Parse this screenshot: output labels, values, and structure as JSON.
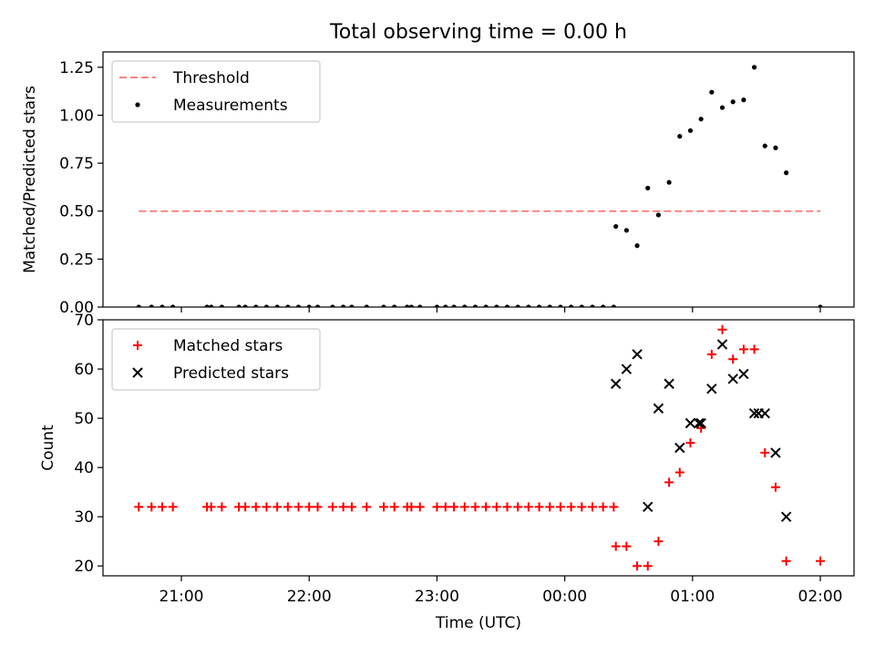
{
  "title": "Total observing time = 0.00 h",
  "chart_data": [
    {
      "type": "scatter",
      "ylabel": "Matched/Predicted stars",
      "ylim": [
        0,
        1.33
      ],
      "yticks": [
        "0.00",
        "0.25",
        "0.50",
        "0.75",
        "1.00",
        "1.25"
      ],
      "grid": false,
      "legend": {
        "placement": "top-left",
        "entries": [
          "Threshold",
          "Measurements"
        ]
      },
      "series": [
        {
          "name": "Threshold",
          "kind": "dashed-line",
          "color": "#ff8080",
          "points": [
            [
              "20:40",
              0.5
            ],
            [
              "02:00",
              0.5
            ]
          ]
        },
        {
          "name": "Measurements",
          "kind": "dots",
          "color": "#000000",
          "points": [
            [
              "20:40",
              0
            ],
            [
              "20:46",
              0
            ],
            [
              "20:51",
              0
            ],
            [
              "20:56",
              0
            ],
            [
              "21:12",
              0
            ],
            [
              "21:14",
              0
            ],
            [
              "21:19",
              0
            ],
            [
              "21:27",
              0
            ],
            [
              "21:30",
              0
            ],
            [
              "21:35",
              0
            ],
            [
              "21:40",
              0
            ],
            [
              "21:45",
              0
            ],
            [
              "21:50",
              0
            ],
            [
              "21:55",
              0
            ],
            [
              "22:00",
              0
            ],
            [
              "22:04",
              0
            ],
            [
              "22:11",
              0
            ],
            [
              "22:16",
              0
            ],
            [
              "22:20",
              0
            ],
            [
              "22:27",
              0
            ],
            [
              "22:35",
              0
            ],
            [
              "22:40",
              0
            ],
            [
              "22:46",
              0
            ],
            [
              "22:48",
              0
            ],
            [
              "22:52",
              0
            ],
            [
              "23:00",
              0
            ],
            [
              "23:04",
              0
            ],
            [
              "23:08",
              0
            ],
            [
              "23:13",
              0
            ],
            [
              "23:18",
              0
            ],
            [
              "23:23",
              0
            ],
            [
              "23:28",
              0
            ],
            [
              "23:33",
              0
            ],
            [
              "23:38",
              0
            ],
            [
              "23:43",
              0
            ],
            [
              "23:48",
              0
            ],
            [
              "23:53",
              0
            ],
            [
              "23:58",
              0
            ],
            [
              "00:03",
              0
            ],
            [
              "00:08",
              0
            ],
            [
              "00:13",
              0
            ],
            [
              "00:18",
              0
            ],
            [
              "00:23",
              0
            ],
            [
              "00:24",
              0.42
            ],
            [
              "00:29",
              0.4
            ],
            [
              "00:34",
              0.32
            ],
            [
              "00:39",
              0.62
            ],
            [
              "00:44",
              0.48
            ],
            [
              "00:49",
              0.65
            ],
            [
              "00:54",
              0.89
            ],
            [
              "00:59",
              0.92
            ],
            [
              "01:04",
              0.98
            ],
            [
              "01:09",
              1.12
            ],
            [
              "01:14",
              1.04
            ],
            [
              "01:19",
              1.07
            ],
            [
              "01:24",
              1.08
            ],
            [
              "01:29",
              1.25
            ],
            [
              "01:34",
              0.84
            ],
            [
              "01:39",
              0.83
            ],
            [
              "01:44",
              0.7
            ],
            [
              "02:00",
              0
            ]
          ]
        }
      ]
    },
    {
      "type": "scatter",
      "xlabel": "Time (UTC)",
      "ylabel": "Count",
      "ylim": [
        18,
        70
      ],
      "yticks": [
        "20",
        "30",
        "40",
        "50",
        "60",
        "70"
      ],
      "xticks": [
        "21:00",
        "22:00",
        "23:00",
        "00:00",
        "01:00",
        "02:00"
      ],
      "grid": false,
      "legend": {
        "placement": "top-left",
        "entries": [
          "Matched stars",
          "Predicted stars"
        ]
      },
      "series": [
        {
          "name": "Matched stars",
          "kind": "plus",
          "color": "#ff0000",
          "points": [
            [
              "20:40",
              32
            ],
            [
              "20:46",
              32
            ],
            [
              "20:51",
              32
            ],
            [
              "20:56",
              32
            ],
            [
              "21:12",
              32
            ],
            [
              "21:14",
              32
            ],
            [
              "21:19",
              32
            ],
            [
              "21:27",
              32
            ],
            [
              "21:30",
              32
            ],
            [
              "21:35",
              32
            ],
            [
              "21:40",
              32
            ],
            [
              "21:45",
              32
            ],
            [
              "21:50",
              32
            ],
            [
              "21:55",
              32
            ],
            [
              "22:00",
              32
            ],
            [
              "22:04",
              32
            ],
            [
              "22:11",
              32
            ],
            [
              "22:16",
              32
            ],
            [
              "22:20",
              32
            ],
            [
              "22:27",
              32
            ],
            [
              "22:35",
              32
            ],
            [
              "22:40",
              32
            ],
            [
              "22:46",
              32
            ],
            [
              "22:48",
              32
            ],
            [
              "22:52",
              32
            ],
            [
              "23:00",
              32
            ],
            [
              "23:04",
              32
            ],
            [
              "23:08",
              32
            ],
            [
              "23:13",
              32
            ],
            [
              "23:18",
              32
            ],
            [
              "23:23",
              32
            ],
            [
              "23:28",
              32
            ],
            [
              "23:33",
              32
            ],
            [
              "23:38",
              32
            ],
            [
              "23:43",
              32
            ],
            [
              "23:48",
              32
            ],
            [
              "23:53",
              32
            ],
            [
              "23:58",
              32
            ],
            [
              "00:03",
              32
            ],
            [
              "00:08",
              32
            ],
            [
              "00:13",
              32
            ],
            [
              "00:18",
              32
            ],
            [
              "00:23",
              32
            ],
            [
              "00:24",
              24
            ],
            [
              "00:29",
              24
            ],
            [
              "00:34",
              20
            ],
            [
              "00:39",
              20
            ],
            [
              "00:44",
              25
            ],
            [
              "00:49",
              37
            ],
            [
              "00:54",
              39
            ],
            [
              "00:59",
              45
            ],
            [
              "01:04",
              48
            ],
            [
              "01:09",
              63
            ],
            [
              "01:14",
              68
            ],
            [
              "01:19",
              62
            ],
            [
              "01:24",
              64
            ],
            [
              "01:29",
              64
            ],
            [
              "01:34",
              43
            ],
            [
              "01:39",
              36
            ],
            [
              "01:44",
              21
            ],
            [
              "02:00",
              21
            ]
          ]
        },
        {
          "name": "Predicted stars",
          "kind": "x",
          "color": "#000000",
          "points": [
            [
              "00:24",
              57
            ],
            [
              "00:29",
              60
            ],
            [
              "00:34",
              63
            ],
            [
              "00:39",
              32
            ],
            [
              "00:44",
              52
            ],
            [
              "00:49",
              57
            ],
            [
              "00:54",
              44
            ],
            [
              "00:59",
              49
            ],
            [
              "01:03",
              49
            ],
            [
              "01:04",
              49
            ],
            [
              "01:09",
              56
            ],
            [
              "01:14",
              65
            ],
            [
              "01:19",
              58
            ],
            [
              "01:24",
              59
            ],
            [
              "01:29",
              51
            ],
            [
              "01:31",
              51
            ],
            [
              "01:34",
              51
            ],
            [
              "01:39",
              43
            ],
            [
              "01:44",
              30
            ]
          ]
        }
      ]
    }
  ]
}
